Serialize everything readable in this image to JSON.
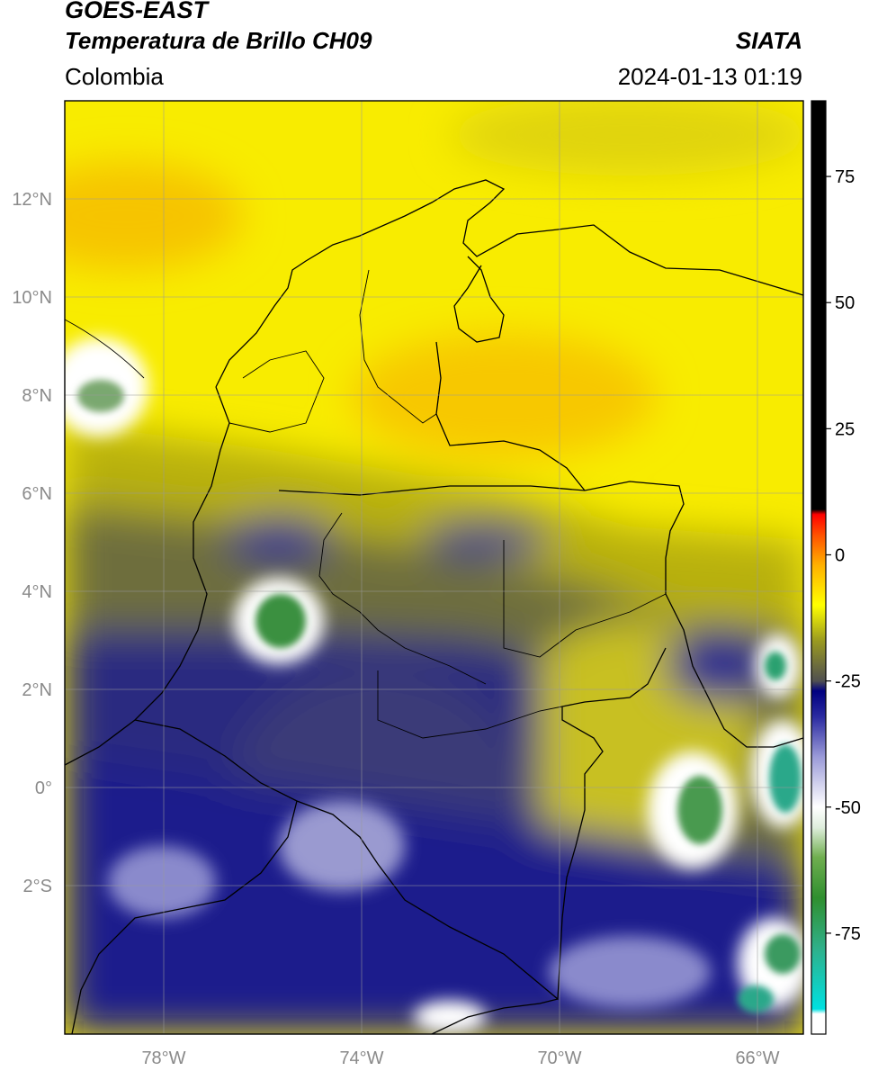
{
  "header": {
    "satellite": "GOES-EAST",
    "product": "Temperatura de Brillo CH09",
    "region": "Colombia",
    "organization": "SIATA",
    "timestamp": "2024-01-13 01:19"
  },
  "map": {
    "lon_range": [
      -80,
      -65
    ],
    "lat_range": [
      -5,
      14
    ],
    "lon_ticks": [
      {
        "value": -78,
        "label": "78°W"
      },
      {
        "value": -74,
        "label": "74°W"
      },
      {
        "value": -70,
        "label": "70°W"
      },
      {
        "value": -66,
        "label": "66°W"
      }
    ],
    "lat_ticks": [
      {
        "value": 12,
        "label": "12°N"
      },
      {
        "value": 10,
        "label": "10°N"
      },
      {
        "value": 8,
        "label": "8°N"
      },
      {
        "value": 6,
        "label": "6°N"
      },
      {
        "value": 4,
        "label": "4°N"
      },
      {
        "value": 2,
        "label": "2°N"
      },
      {
        "value": 0,
        "label": "0°"
      },
      {
        "value": -2,
        "label": "2°S"
      }
    ],
    "gridlines": true,
    "colorbar": {
      "range": [
        -95,
        90
      ],
      "ticks": [
        {
          "value": 75,
          "label": "75"
        },
        {
          "value": 50,
          "label": "50"
        },
        {
          "value": 25,
          "label": "25"
        },
        {
          "value": 0,
          "label": "0"
        },
        {
          "value": -25,
          "label": "-25"
        },
        {
          "value": -50,
          "label": "-50"
        },
        {
          "value": -75,
          "label": "-75"
        }
      ],
      "stops": [
        {
          "value": -95,
          "color": "#ffffff"
        },
        {
          "value": -91,
          "color": "#ffffff"
        },
        {
          "value": -90,
          "color": "#00e0e0"
        },
        {
          "value": -78,
          "color": "#2fb08a"
        },
        {
          "value": -68,
          "color": "#2f8f2f"
        },
        {
          "value": -60,
          "color": "#6fae4f"
        },
        {
          "value": -54,
          "color": "#dfeedd"
        },
        {
          "value": -50,
          "color": "#ffffff"
        },
        {
          "value": -40,
          "color": "#9a9ad8"
        },
        {
          "value": -32,
          "color": "#2a2aa0"
        },
        {
          "value": -27,
          "color": "#000080"
        },
        {
          "value": -25,
          "color": "#505050"
        },
        {
          "value": -17,
          "color": "#9a9a20"
        },
        {
          "value": -10,
          "color": "#ffff00"
        },
        {
          "value": -2,
          "color": "#ffb000"
        },
        {
          "value": 4,
          "color": "#ff5000"
        },
        {
          "value": 8,
          "color": "#ff0000"
        },
        {
          "value": 9,
          "color": "#000000"
        },
        {
          "value": 90,
          "color": "#000000"
        }
      ]
    }
  }
}
